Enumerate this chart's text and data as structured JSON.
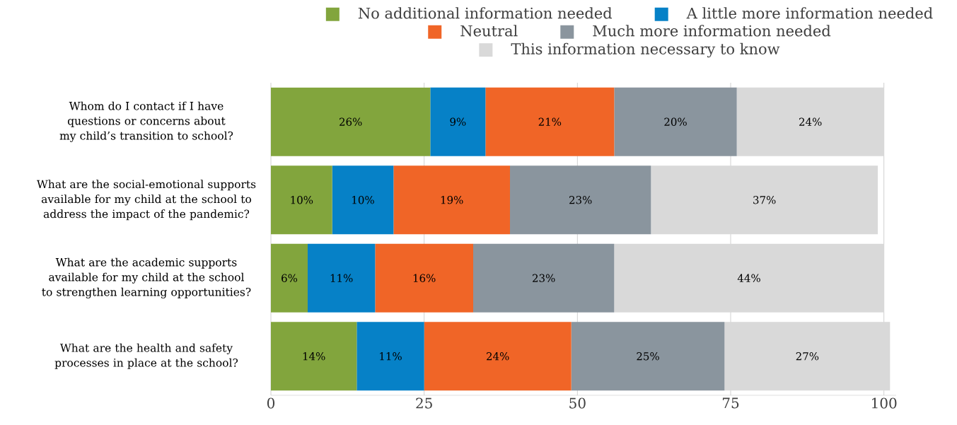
{
  "chart_data": {
    "type": "bar",
    "orientation": "horizontal",
    "stacked": true,
    "categories": [
      "Whom do I contact if I have questions or concerns about my child’s transition to school?",
      "What are the social-emotional supports available for my child at the school to address the impact of the pandemic?",
      "What are the academic supports available for my child at the school to strengthen learning opportunities?",
      "What are the health and safety processes in place at the school?"
    ],
    "series": [
      {
        "name": "No additional information needed",
        "color": "#82a53d",
        "values": [
          26,
          10,
          6,
          14
        ],
        "value_labels": [
          "26%",
          "10%",
          "6%",
          "14%"
        ]
      },
      {
        "name": "A little more information needed",
        "color": "#0681c7",
        "values": [
          9,
          10,
          11,
          11
        ],
        "value_labels": [
          "9%",
          "10%",
          "11%",
          "11%"
        ]
      },
      {
        "name": "Neutral",
        "color": "#f06527",
        "values": [
          21,
          19,
          16,
          24
        ],
        "value_labels": [
          "21%",
          "19%",
          "16%",
          "24%"
        ]
      },
      {
        "name": "Much more information needed",
        "color": "#8a959e",
        "values": [
          20,
          23,
          23,
          25
        ],
        "value_labels": [
          "20%",
          "23%",
          "23%",
          "25%"
        ]
      },
      {
        "name": "This information necessary to know",
        "color": "#d9d9d9",
        "values": [
          24,
          37,
          44,
          27
        ],
        "value_labels": [
          "24%",
          "37%",
          "44%",
          "27%"
        ]
      }
    ],
    "xlim": [
      0,
      102
    ],
    "xticks": [
      0,
      25,
      50,
      75,
      100
    ],
    "grid": "x",
    "legend": "top"
  }
}
